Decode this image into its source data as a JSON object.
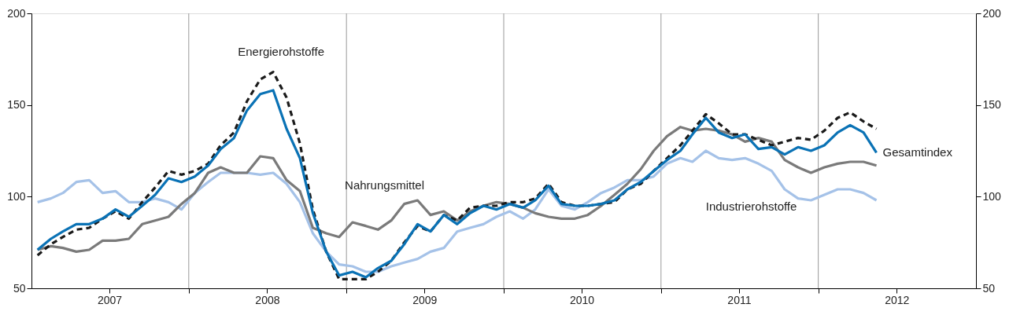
{
  "chart_data": {
    "type": "line",
    "x": [
      "2007-01-15",
      "2007-02-15",
      "2007-03-15",
      "2007-04-15",
      "2007-05-15",
      "2007-06-15",
      "2007-07-15",
      "2007-08-15",
      "2007-09-15",
      "2007-10-15",
      "2007-11-15",
      "2007-12-15",
      "2008-01-15",
      "2008-02-15",
      "2008-03-15",
      "2008-04-15",
      "2008-05-15",
      "2008-06-15",
      "2008-07-15",
      "2008-08-15",
      "2008-09-15",
      "2008-10-15",
      "2008-11-15",
      "2008-12-15",
      "2009-01-15",
      "2009-02-15",
      "2009-03-15",
      "2009-04-15",
      "2009-05-15",
      "2009-06-15",
      "2009-07-15",
      "2009-08-15",
      "2009-09-15",
      "2009-10-15",
      "2009-11-15",
      "2009-12-15",
      "2010-01-15",
      "2010-02-15",
      "2010-03-15",
      "2010-04-15",
      "2010-05-15",
      "2010-06-15",
      "2010-07-15",
      "2010-08-15",
      "2010-09-15",
      "2010-10-15",
      "2010-11-15",
      "2010-12-15",
      "2011-01-15",
      "2011-02-15",
      "2011-03-15",
      "2011-04-15",
      "2011-05-15",
      "2011-06-15",
      "2011-07-15",
      "2011-08-15",
      "2011-09-15",
      "2011-10-15",
      "2011-11-15",
      "2011-12-15",
      "2012-01-15",
      "2012-02-15",
      "2012-03-15",
      "2012-04-15",
      "2012-05-15"
    ],
    "series": [
      {
        "name": "Gesamtindex",
        "color": "#0a72b5",
        "values": [
          71,
          77,
          81,
          85,
          85,
          88,
          93,
          89,
          95,
          101,
          110,
          108,
          111,
          117,
          126,
          132,
          147,
          156,
          158,
          137,
          121,
          91,
          70,
          57,
          59,
          56,
          61,
          65,
          74,
          85,
          81,
          90,
          85,
          91,
          95,
          93,
          96,
          94,
          98,
          106,
          96,
          95,
          95,
          96,
          98,
          104,
          108,
          114,
          120,
          125,
          134,
          143,
          135,
          132,
          134,
          126,
          127,
          123,
          127,
          125,
          128,
          135,
          139,
          135,
          124
        ]
      },
      {
        "name": "Energierohstoffe",
        "color": "#1a1a1a",
        "line_style": "dashed",
        "values": [
          68,
          74,
          78,
          82,
          83,
          88,
          92,
          88,
          97,
          105,
          114,
          112,
          114,
          118,
          128,
          135,
          152,
          164,
          168,
          154,
          129,
          93,
          70,
          55,
          55,
          55,
          59,
          65,
          75,
          84,
          81,
          90,
          87,
          94,
          95,
          95,
          97,
          97,
          99,
          107,
          97,
          95,
          95,
          96,
          97,
          104,
          107,
          114,
          121,
          128,
          136,
          145,
          140,
          134,
          134,
          131,
          128,
          130,
          132,
          131,
          136,
          143,
          146,
          141,
          137
        ]
      },
      {
        "name": "Nahrungsmittel",
        "color": "#7a7a7a",
        "values": [
          71,
          73,
          72,
          70,
          71,
          76,
          76,
          77,
          85,
          87,
          89,
          96,
          102,
          113,
          116,
          113,
          113,
          122,
          121,
          109,
          103,
          83,
          80,
          78,
          86,
          84,
          82,
          87,
          96,
          98,
          90,
          92,
          87,
          92,
          95,
          97,
          96,
          94,
          91,
          89,
          88,
          88,
          90,
          95,
          101,
          107,
          115,
          125,
          133,
          138,
          136,
          137,
          136,
          134,
          130,
          132,
          130,
          120,
          116,
          113,
          116,
          118,
          119,
          119,
          117
        ]
      },
      {
        "name": "Industrierohstoffe",
        "color": "#a5c2e8",
        "values": [
          97,
          99,
          102,
          108,
          109,
          102,
          103,
          97,
          97,
          99,
          97,
          93,
          102,
          108,
          113,
          113,
          113,
          112,
          113,
          107,
          97,
          80,
          70,
          63,
          62,
          59,
          59,
          62,
          64,
          66,
          70,
          72,
          81,
          83,
          85,
          89,
          92,
          88,
          93,
          104,
          95,
          93,
          97,
          102,
          105,
          109,
          109,
          111,
          118,
          121,
          119,
          125,
          121,
          120,
          121,
          118,
          114,
          104,
          99,
          98,
          101,
          104,
          104,
          102,
          98
        ]
      }
    ],
    "xlim": [
      "2007-01-01",
      "2013-01-01"
    ],
    "xticks": [
      {
        "value": "2007-07-01",
        "label": "2007"
      },
      {
        "value": "2008-01-01",
        "label": null
      },
      {
        "value": "2008-07-01",
        "label": "2008"
      },
      {
        "value": "2009-01-01",
        "label": null
      },
      {
        "value": "2009-07-01",
        "label": "2009"
      },
      {
        "value": "2010-01-01",
        "label": null
      },
      {
        "value": "2010-07-01",
        "label": "2010"
      },
      {
        "value": "2011-01-01",
        "label": null
      },
      {
        "value": "2011-07-01",
        "label": "2011"
      },
      {
        "value": "2012-01-01",
        "label": null
      },
      {
        "value": "2012-07-01",
        "label": "2012"
      }
    ],
    "ylim": [
      50,
      200
    ],
    "yticks": [
      50,
      100,
      150,
      200
    ],
    "y2lim": [
      50,
      200
    ],
    "y2ticks": [
      50,
      100,
      150,
      200
    ],
    "grid": "x",
    "line_style": "solid"
  }
}
